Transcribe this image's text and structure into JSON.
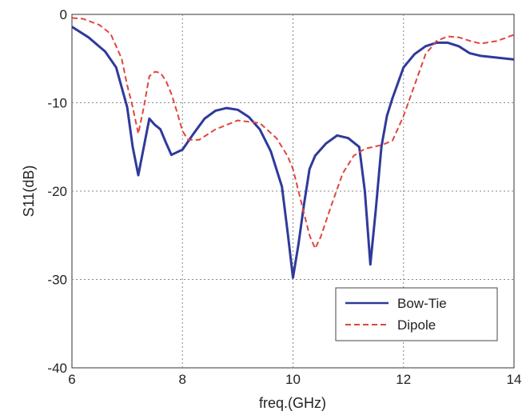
{
  "chart_data": {
    "type": "line",
    "xlabel": "freq.(GHz)",
    "ylabel": "S11(dB)",
    "xlim": [
      6,
      14
    ],
    "ylim": [
      -40,
      0
    ],
    "xticks": [
      6,
      8,
      10,
      12,
      14
    ],
    "yticks": [
      0,
      -10,
      -20,
      -30,
      -40
    ],
    "grid": true,
    "grid_style": "dotted",
    "legend_position": "bottom-right",
    "series": [
      {
        "name": "Bow-Tie",
        "color": "#2e3a9a",
        "dash": "solid",
        "x": [
          6.0,
          6.3,
          6.6,
          6.8,
          7.0,
          7.1,
          7.2,
          7.3,
          7.4,
          7.5,
          7.6,
          7.7,
          7.8,
          8.0,
          8.2,
          8.4,
          8.6,
          8.8,
          9.0,
          9.2,
          9.4,
          9.6,
          9.8,
          9.9,
          10.0,
          10.1,
          10.2,
          10.3,
          10.4,
          10.6,
          10.8,
          11.0,
          11.2,
          11.3,
          11.4,
          11.5,
          11.6,
          11.7,
          11.8,
          12.0,
          12.2,
          12.4,
          12.6,
          12.8,
          13.0,
          13.2,
          13.4,
          13.7,
          14.0
        ],
        "y": [
          -1.4,
          -2.6,
          -4.2,
          -6.0,
          -10.5,
          -15.0,
          -18.2,
          -15.0,
          -11.8,
          -12.5,
          -13.0,
          -14.5,
          -15.9,
          -15.3,
          -13.5,
          -11.8,
          -10.9,
          -10.6,
          -10.8,
          -11.6,
          -13.0,
          -15.5,
          -19.5,
          -24.5,
          -29.8,
          -26.0,
          -21.5,
          -17.5,
          -16.0,
          -14.6,
          -13.7,
          -14.0,
          -15.0,
          -20.0,
          -28.3,
          -22.0,
          -15.0,
          -11.5,
          -9.5,
          -6.0,
          -4.5,
          -3.6,
          -3.2,
          -3.2,
          -3.6,
          -4.4,
          -4.7,
          -4.9,
          -5.1
        ]
      },
      {
        "name": "Dipole",
        "color": "#e0463c",
        "dash": "dashed",
        "x": [
          6.0,
          6.2,
          6.5,
          6.7,
          6.9,
          7.0,
          7.1,
          7.2,
          7.3,
          7.4,
          7.5,
          7.6,
          7.7,
          7.8,
          7.9,
          8.0,
          8.1,
          8.3,
          8.6,
          9.0,
          9.4,
          9.7,
          9.9,
          10.0,
          10.1,
          10.2,
          10.3,
          10.4,
          10.5,
          10.7,
          10.9,
          11.1,
          11.3,
          11.6,
          11.8,
          12.0,
          12.2,
          12.4,
          12.6,
          12.8,
          13.0,
          13.2,
          13.4,
          13.7,
          14.0
        ],
        "y": [
          -0.4,
          -0.5,
          -1.2,
          -2.2,
          -5.0,
          -8.0,
          -10.5,
          -13.5,
          -10.5,
          -7.0,
          -6.5,
          -6.6,
          -7.5,
          -9.0,
          -11.0,
          -13.2,
          -14.2,
          -14.2,
          -13.0,
          -12.0,
          -12.3,
          -14.0,
          -16.0,
          -17.5,
          -20.0,
          -22.5,
          -25.0,
          -26.5,
          -25.2,
          -21.5,
          -18.0,
          -16.0,
          -15.2,
          -14.8,
          -14.3,
          -11.5,
          -8.0,
          -4.5,
          -3.0,
          -2.5,
          -2.6,
          -3.0,
          -3.3,
          -3.0,
          -2.3
        ]
      }
    ]
  }
}
